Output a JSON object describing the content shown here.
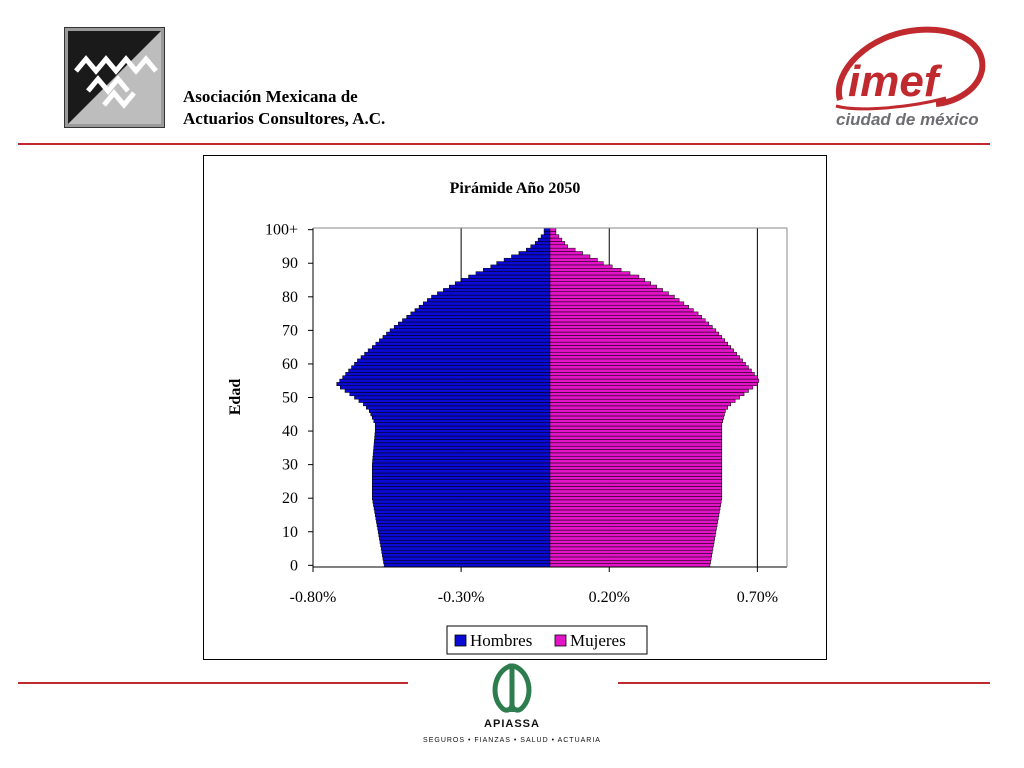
{
  "header": {
    "org_line1": "Asociación Mexicana de",
    "org_line2": "Actuarios Consultores, A.C.",
    "imef_logo_text": "imef",
    "imef_subtitle": "ciudad de méxico"
  },
  "footer": {
    "apiassa_name": "APIASSA",
    "apiassa_tagline": "SEGUROS • FIANZAS • SALUD • ACTUARIA"
  },
  "colors": {
    "rule": "#c0292e",
    "hombres": "#0a0ad2",
    "mujeres": "#e313c8",
    "imef_red": "#c0292e",
    "imef_gray": "#6d6e71",
    "apiassa_green": "#2e7d4f"
  },
  "icons": {
    "amac_logo": "amac-waves-logo",
    "imef_logo": "imef-swoosh-logo",
    "apiassa_logo": "apiassa-leaf-logo"
  },
  "chart_data": {
    "type": "population-pyramid (horizontal bar)",
    "title": "Pirámide Año 2050",
    "ylabel": "Edad",
    "xlabel": "",
    "x_tick_labels": [
      "-0.80%",
      "-0.30%",
      "0.20%",
      "0.70%"
    ],
    "x_tick_values": [
      -0.8,
      -0.3,
      0.2,
      0.7
    ],
    "xlim": [
      -0.8,
      0.8
    ],
    "y_tick_labels": [
      "0",
      "10",
      "20",
      "30",
      "40",
      "50",
      "60",
      "70",
      "80",
      "90",
      "100+"
    ],
    "grid": "vertical major gridlines at x ticks",
    "legend": {
      "position": "bottom-center",
      "entries": [
        "Hombres",
        "Mujeres"
      ]
    },
    "ages": [
      "0",
      "1",
      "2",
      "3",
      "4",
      "5",
      "6",
      "7",
      "8",
      "9",
      "10",
      "11",
      "12",
      "13",
      "14",
      "15",
      "16",
      "17",
      "18",
      "19",
      "20",
      "21",
      "22",
      "23",
      "24",
      "25",
      "26",
      "27",
      "28",
      "29",
      "30",
      "31",
      "32",
      "33",
      "34",
      "35",
      "36",
      "37",
      "38",
      "39",
      "40",
      "41",
      "42",
      "43",
      "44",
      "45",
      "46",
      "47",
      "48",
      "49",
      "50",
      "51",
      "52",
      "53",
      "54",
      "55",
      "56",
      "57",
      "58",
      "59",
      "60",
      "61",
      "62",
      "63",
      "64",
      "65",
      "66",
      "67",
      "68",
      "69",
      "70",
      "71",
      "72",
      "73",
      "74",
      "75",
      "76",
      "77",
      "78",
      "79",
      "80",
      "81",
      "82",
      "83",
      "84",
      "85",
      "86",
      "87",
      "88",
      "89",
      "90",
      "91",
      "92",
      "93",
      "94",
      "95",
      "96",
      "97",
      "98",
      "99",
      "100+"
    ],
    "series": [
      {
        "name": "Hombres",
        "values": [
          -0.56,
          -0.562,
          -0.564,
          -0.566,
          -0.568,
          -0.57,
          -0.572,
          -0.574,
          -0.576,
          -0.578,
          -0.58,
          -0.582,
          -0.584,
          -0.586,
          -0.588,
          -0.59,
          -0.592,
          -0.594,
          -0.596,
          -0.598,
          -0.6,
          -0.6,
          -0.6,
          -0.6,
          -0.6,
          -0.6,
          -0.6,
          -0.6,
          -0.6,
          -0.6,
          -0.6,
          -0.599,
          -0.598,
          -0.597,
          -0.596,
          -0.595,
          -0.594,
          -0.593,
          -0.592,
          -0.591,
          -0.59,
          -0.59,
          -0.59,
          -0.595,
          -0.6,
          -0.605,
          -0.61,
          -0.62,
          -0.63,
          -0.645,
          -0.66,
          -0.676,
          -0.692,
          -0.708,
          -0.72,
          -0.71,
          -0.7,
          -0.69,
          -0.68,
          -0.67,
          -0.66,
          -0.65,
          -0.638,
          -0.626,
          -0.614,
          -0.6,
          -0.588,
          -0.576,
          -0.564,
          -0.552,
          -0.54,
          -0.526,
          -0.512,
          -0.498,
          -0.484,
          -0.47,
          -0.456,
          -0.442,
          -0.428,
          -0.414,
          -0.4,
          -0.38,
          -0.36,
          -0.34,
          -0.32,
          -0.3,
          -0.275,
          -0.25,
          -0.225,
          -0.2,
          -0.18,
          -0.155,
          -0.13,
          -0.105,
          -0.08,
          -0.065,
          -0.05,
          -0.04,
          -0.03,
          -0.02,
          -0.02
        ]
      },
      {
        "name": "Mujeres",
        "values": [
          0.54,
          0.542,
          0.544,
          0.546,
          0.548,
          0.55,
          0.552,
          0.554,
          0.556,
          0.558,
          0.56,
          0.562,
          0.564,
          0.566,
          0.568,
          0.57,
          0.572,
          0.574,
          0.576,
          0.578,
          0.58,
          0.58,
          0.58,
          0.58,
          0.58,
          0.58,
          0.58,
          0.58,
          0.58,
          0.58,
          0.58,
          0.58,
          0.58,
          0.58,
          0.58,
          0.58,
          0.58,
          0.58,
          0.58,
          0.58,
          0.58,
          0.58,
          0.58,
          0.583,
          0.586,
          0.589,
          0.592,
          0.6,
          0.61,
          0.625,
          0.64,
          0.655,
          0.67,
          0.685,
          0.7,
          0.705,
          0.7,
          0.69,
          0.68,
          0.67,
          0.66,
          0.65,
          0.64,
          0.63,
          0.62,
          0.61,
          0.6,
          0.59,
          0.58,
          0.57,
          0.56,
          0.548,
          0.536,
          0.524,
          0.512,
          0.5,
          0.484,
          0.468,
          0.452,
          0.436,
          0.42,
          0.4,
          0.38,
          0.36,
          0.34,
          0.32,
          0.3,
          0.27,
          0.24,
          0.21,
          0.18,
          0.16,
          0.135,
          0.11,
          0.085,
          0.06,
          0.05,
          0.04,
          0.03,
          0.02,
          0.02
        ]
      }
    ]
  }
}
